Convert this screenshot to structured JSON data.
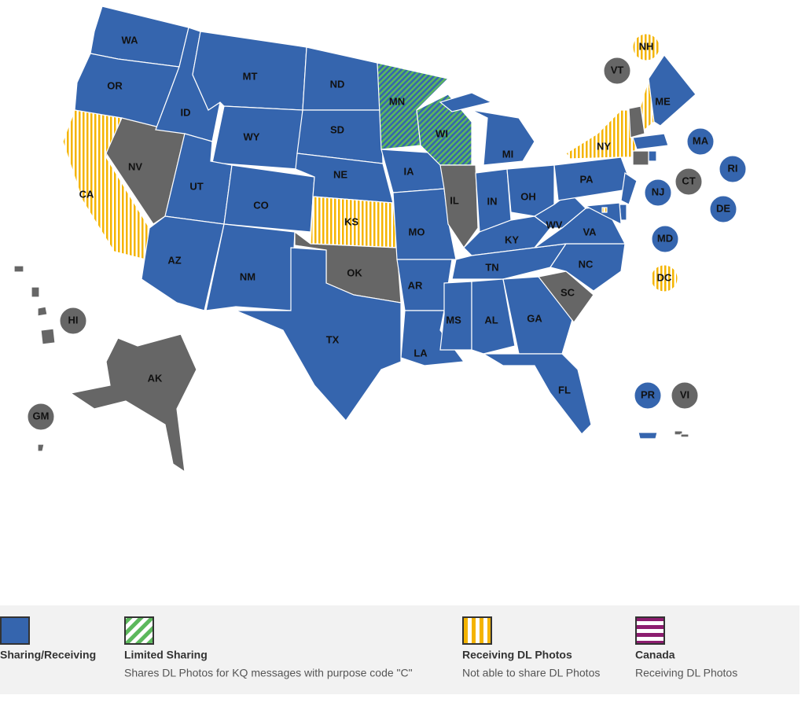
{
  "map": {
    "no_status_color": "#666666",
    "regions": [
      {
        "label": "WA",
        "legend": 0
      },
      {
        "label": "OR",
        "legend": 0
      },
      {
        "label": "CA",
        "legend": 2
      },
      {
        "label": "NV",
        "legend": null
      },
      {
        "label": "ID",
        "legend": 0
      },
      {
        "label": "MT",
        "legend": 0
      },
      {
        "label": "WY",
        "legend": 0
      },
      {
        "label": "UT",
        "legend": 0
      },
      {
        "label": "AZ",
        "legend": 0
      },
      {
        "label": "CO",
        "legend": 0
      },
      {
        "label": "NM",
        "legend": 0
      },
      {
        "label": "ND",
        "legend": 0
      },
      {
        "label": "SD",
        "legend": 0
      },
      {
        "label": "NE",
        "legend": 0
      },
      {
        "label": "KS",
        "legend": 2
      },
      {
        "label": "OK",
        "legend": null
      },
      {
        "label": "TX",
        "legend": 0
      },
      {
        "label": "MN",
        "legend": 1
      },
      {
        "label": "IA",
        "legend": 0
      },
      {
        "label": "MO",
        "legend": 0
      },
      {
        "label": "AR",
        "legend": 0
      },
      {
        "label": "LA",
        "legend": 0
      },
      {
        "label": "WI",
        "legend": 1
      },
      {
        "label": "IL",
        "legend": null
      },
      {
        "label": "MI",
        "legend": 0
      },
      {
        "label": "IN",
        "legend": 0
      },
      {
        "label": "OH",
        "legend": 0
      },
      {
        "label": "KY",
        "legend": 0
      },
      {
        "label": "TN",
        "legend": 0
      },
      {
        "label": "MS",
        "legend": 0
      },
      {
        "label": "AL",
        "legend": 0
      },
      {
        "label": "GA",
        "legend": 0
      },
      {
        "label": "FL",
        "legend": 0
      },
      {
        "label": "SC",
        "legend": null
      },
      {
        "label": "NC",
        "legend": 0
      },
      {
        "label": "VA",
        "legend": 0
      },
      {
        "label": "WV",
        "legend": 0
      },
      {
        "label": "PA",
        "legend": 0
      },
      {
        "label": "NY",
        "legend": 2
      },
      {
        "label": "VT",
        "legend": null
      },
      {
        "label": "NH",
        "legend": 2
      },
      {
        "label": "ME",
        "legend": 0
      },
      {
        "label": "MA",
        "legend": 0
      },
      {
        "label": "RI",
        "legend": 0
      },
      {
        "label": "CT",
        "legend": null
      },
      {
        "label": "NJ",
        "legend": 0
      },
      {
        "label": "DE",
        "legend": 0
      },
      {
        "label": "MD",
        "legend": 0
      },
      {
        "label": "DC",
        "legend": 2
      },
      {
        "label": "AK",
        "legend": null
      },
      {
        "label": "HI",
        "legend": null
      },
      {
        "label": "GM",
        "legend": null
      },
      {
        "label": "PR",
        "legend": 0
      },
      {
        "label": "VI",
        "legend": null
      }
    ]
  },
  "legend": [
    {
      "title": "Sharing/Receiving",
      "color": "#3565ae",
      "pattern": "solid"
    },
    {
      "title": "Limited Sharing",
      "description": "Shares DL Photos for KQ messages with purpose code \"C\"",
      "color": "#3565ae",
      "swatch_color": "#ffffff",
      "stripe_color": "#5cb85c",
      "pattern": "diagonal"
    },
    {
      "title": "Receiving DL Photos",
      "description": "Not able to share DL Photos",
      "color": "#ffffff",
      "stripe_color": "#f4b400",
      "pattern": "vertical"
    },
    {
      "title": "Canada",
      "description": "Receiving DL Photos",
      "color": "#8c1d6f",
      "stripe_color": "#ffffff",
      "pattern": "horizontal"
    }
  ]
}
